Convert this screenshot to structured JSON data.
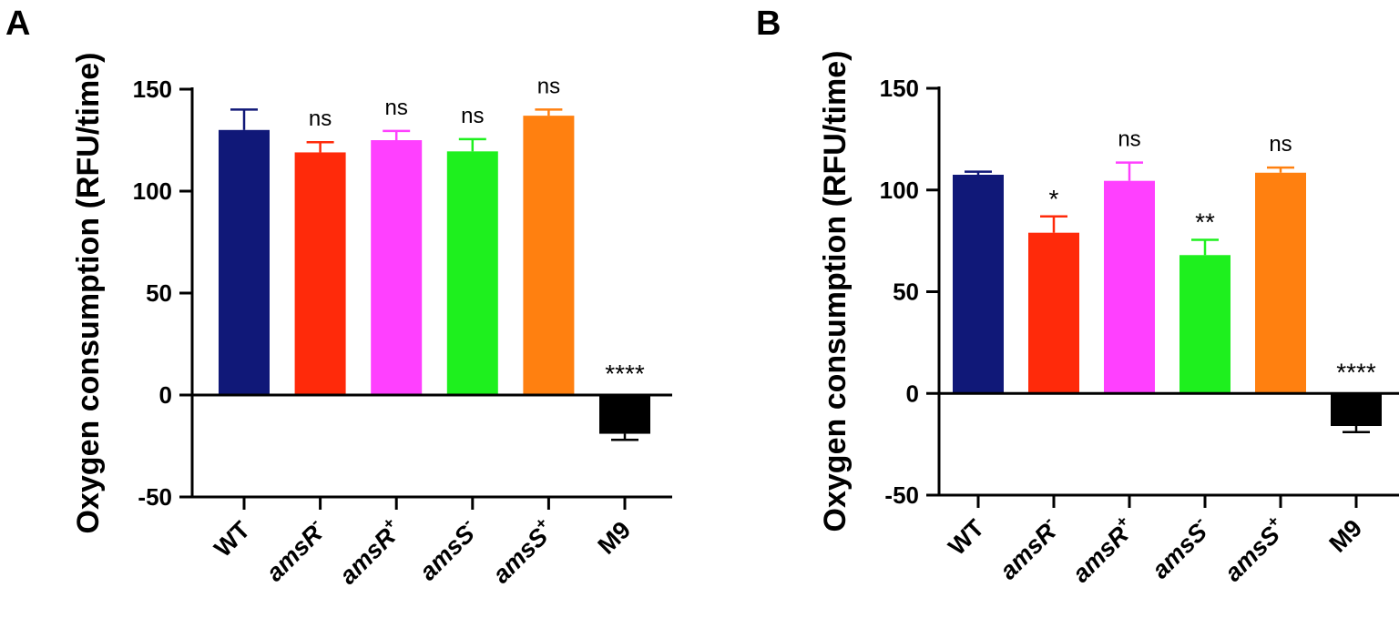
{
  "chart_data": [
    {
      "panel": "A",
      "type": "bar",
      "ylabel": "Oxygen consumption (RFU/time)",
      "ylim": [
        -50,
        150
      ],
      "yticks": [
        "150",
        "100",
        "50",
        "0",
        "-50"
      ],
      "categories": [
        {
          "name": "WT",
          "base": "WT",
          "sup": "",
          "italic": false
        },
        {
          "name": "amsR-",
          "base": "amsR",
          "sup": "-",
          "italic": true
        },
        {
          "name": "amsR+",
          "base": "amsR",
          "sup": "+",
          "italic": true
        },
        {
          "name": "amsS-",
          "base": "amsS",
          "sup": "-",
          "italic": true
        },
        {
          "name": "amsS+",
          "base": "amsS",
          "sup": "+",
          "italic": true
        },
        {
          "name": "M9",
          "base": "M9",
          "sup": "",
          "italic": false
        }
      ],
      "values": [
        130,
        119,
        125,
        119.5,
        137,
        -19
      ],
      "errors": [
        10,
        5,
        4.5,
        6,
        3,
        3
      ],
      "significance": [
        "",
        "ns",
        "ns",
        "ns",
        "ns",
        "****"
      ]
    },
    {
      "panel": "B",
      "type": "bar",
      "ylabel": "Oxygen consumption (RFU/time)",
      "ylim": [
        -50,
        150
      ],
      "yticks": [
        "150",
        "100",
        "50",
        "0",
        "-50"
      ],
      "categories": [
        {
          "name": "WT",
          "base": "WT",
          "sup": "",
          "italic": false
        },
        {
          "name": "amsR-",
          "base": "amsR",
          "sup": "-",
          "italic": true
        },
        {
          "name": "amsR+",
          "base": "amsR",
          "sup": "+",
          "italic": true
        },
        {
          "name": "amsS-",
          "base": "amsS",
          "sup": "-",
          "italic": true
        },
        {
          "name": "amsS+",
          "base": "amsS",
          "sup": "+",
          "italic": true
        },
        {
          "name": "M9",
          "base": "M9",
          "sup": "",
          "italic": false
        }
      ],
      "values": [
        107.5,
        79,
        104.5,
        68,
        108.5,
        -16
      ],
      "errors": [
        1.5,
        8,
        9,
        7.5,
        2.5,
        3
      ],
      "significance": [
        "",
        "*",
        "ns",
        "**",
        "ns",
        "****"
      ]
    }
  ],
  "colors": [
    "#101878",
    "#ff2a0a",
    "#ff40ff",
    "#1ef01e",
    "#ff8010",
    "#000000"
  ]
}
